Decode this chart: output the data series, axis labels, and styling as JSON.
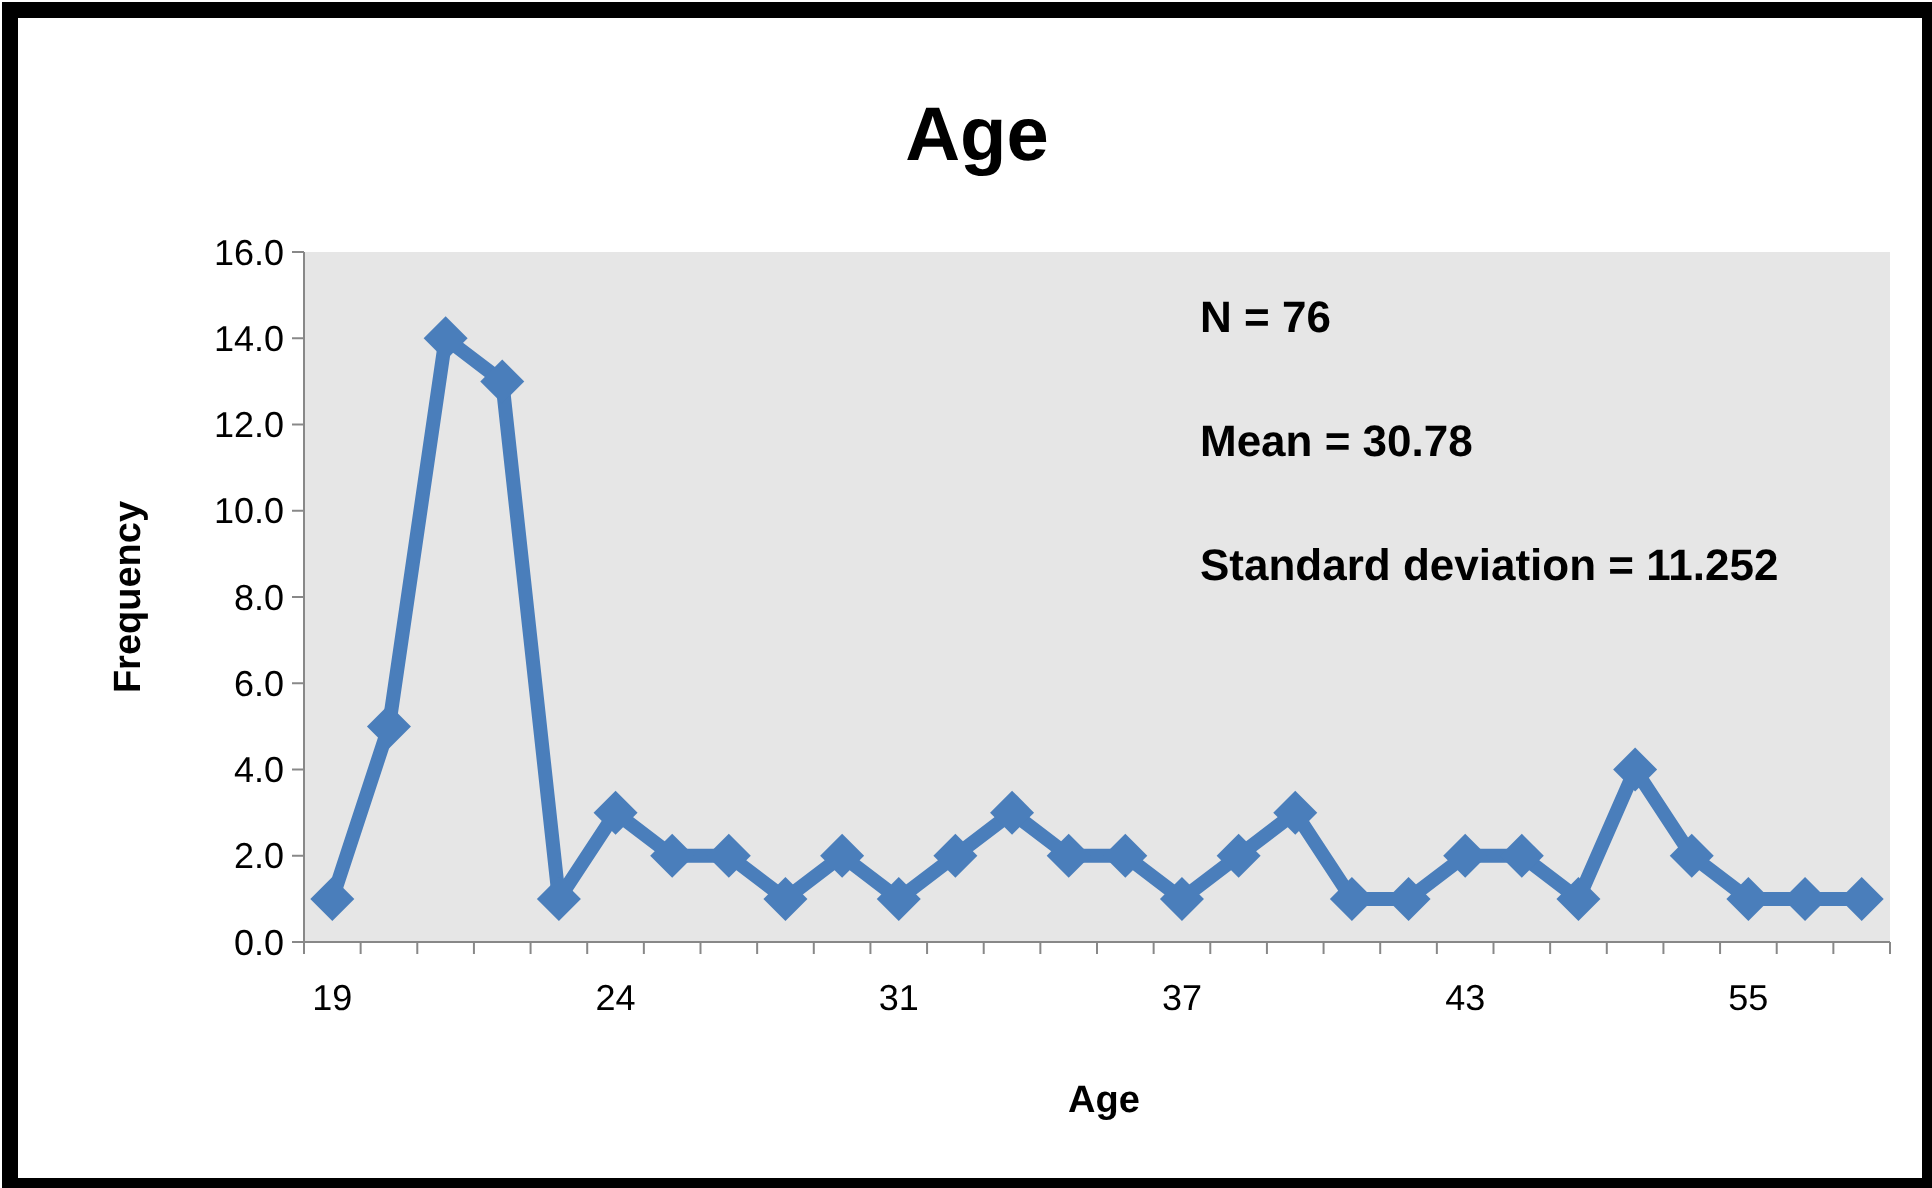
{
  "chart_data": {
    "type": "line",
    "title": "Age",
    "xlabel": "Age",
    "ylabel": "Frequency",
    "categories": [
      "19",
      null,
      null,
      null,
      null,
      "24",
      null,
      null,
      null,
      null,
      "31",
      null,
      null,
      null,
      null,
      "37",
      null,
      null,
      null,
      null,
      "43",
      null,
      null,
      null,
      null,
      "55",
      null,
      null
    ],
    "series": [
      {
        "color": "#4a7ebb",
        "values": [
          1,
          5,
          14,
          13,
          1,
          3,
          2,
          2,
          1,
          2,
          1,
          2,
          3,
          2,
          2,
          1,
          2,
          3,
          1,
          1,
          2,
          2,
          1,
          4,
          2,
          1,
          1,
          1
        ]
      }
    ],
    "ylim": [
      0,
      16
    ],
    "yticks": [
      {
        "value": 0,
        "label": "0.0"
      },
      {
        "value": 2,
        "label": "2.0"
      },
      {
        "value": 4,
        "label": "4.0"
      },
      {
        "value": 6,
        "label": "6.0"
      },
      {
        "value": 8,
        "label": "8.0"
      },
      {
        "value": 10,
        "label": "10.0"
      },
      {
        "value": 12,
        "label": "12.0"
      },
      {
        "value": 14,
        "label": "14.0"
      },
      {
        "value": 16,
        "label": "16.0"
      }
    ],
    "annotations": [
      "N = 76",
      "Mean = 30.78",
      "Standard deviation = 11.252"
    ],
    "marker": "diamond",
    "line_style": "solid",
    "grid": false
  }
}
